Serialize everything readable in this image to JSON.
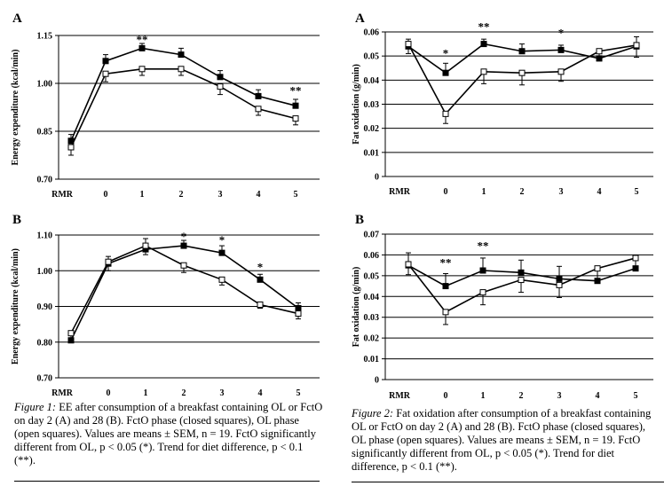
{
  "chart_data": [
    {
      "id": "fig1A",
      "type": "line",
      "panel_label": "A",
      "ylabel": "Energy expenditure (kcal/min)",
      "ylim": [
        0.7,
        1.15
      ],
      "yticks": [
        0.7,
        0.85,
        1.0,
        1.15
      ],
      "ytick_labels": [
        "0.70",
        "0.85",
        "1.00",
        "1.15"
      ],
      "categories": [
        "RMR",
        "0",
        "1",
        "2",
        "3",
        "4",
        "5"
      ],
      "grid": true,
      "series": [
        {
          "name": "FctO",
          "marker": "filled-square",
          "values": [
            0.82,
            1.07,
            1.11,
            1.09,
            1.02,
            0.96,
            0.93
          ],
          "errors": [
            0.02,
            0.02,
            0.015,
            0.02,
            0.02,
            0.02,
            0.02
          ]
        },
        {
          "name": "OL",
          "marker": "open-square",
          "values": [
            0.8,
            1.03,
            1.045,
            1.045,
            0.99,
            0.92,
            0.89
          ],
          "errors": [
            0.025,
            0.025,
            0.02,
            0.02,
            0.025,
            0.02,
            0.02
          ]
        }
      ],
      "annotations": [
        {
          "category": "1",
          "text": "**",
          "y": 1.125
        },
        {
          "category": "5",
          "text": "**",
          "y": 0.965
        }
      ]
    },
    {
      "id": "fig1B",
      "type": "line",
      "panel_label": "B",
      "ylabel": "Energy expenditure (kcal/min)",
      "ylim": [
        0.7,
        1.1
      ],
      "yticks": [
        0.7,
        0.8,
        0.9,
        1.0,
        1.1
      ],
      "ytick_labels": [
        "0.70",
        "0.80",
        "0.90",
        "1.00",
        "1.10"
      ],
      "categories": [
        "RMR",
        "0",
        "1",
        "2",
        "3",
        "4",
        "5"
      ],
      "grid": true,
      "series": [
        {
          "name": "FctO",
          "marker": "filled-square",
          "values": [
            0.805,
            1.02,
            1.06,
            1.07,
            1.05,
            0.975,
            0.895
          ],
          "errors": [
            0.015,
            0.02,
            0.03,
            0.015,
            0.02,
            0.015,
            0.015
          ]
        },
        {
          "name": "OL",
          "marker": "open-square",
          "values": [
            0.825,
            1.025,
            1.07,
            1.015,
            0.975,
            0.905,
            0.88
          ],
          "errors": [
            0.02,
            0.025,
            0.025,
            0.02,
            0.015,
            0.01,
            0.015
          ]
        }
      ],
      "annotations": [
        {
          "category": "2",
          "text": "*",
          "y": 1.085
        },
        {
          "category": "3",
          "text": "*",
          "y": 1.075
        },
        {
          "category": "4",
          "text": "*",
          "y": 1.0
        }
      ]
    },
    {
      "id": "fig2A",
      "type": "line",
      "panel_label": "A",
      "ylabel": "Fat oxidation (g/min)",
      "ylim": [
        0,
        0.06
      ],
      "yticks": [
        0,
        0.01,
        0.02,
        0.03,
        0.04,
        0.05,
        0.06
      ],
      "ytick_labels": [
        "0",
        "0.01",
        "0.02",
        "0.03",
        "0.04",
        "0.05",
        "0.06"
      ],
      "categories": [
        "RMR",
        "0",
        "1",
        "2",
        "3",
        "4",
        "5"
      ],
      "grid": true,
      "series": [
        {
          "name": "FctO",
          "marker": "filled-square",
          "values": [
            0.054,
            0.043,
            0.055,
            0.052,
            0.0525,
            0.049,
            0.054
          ],
          "errors": [
            0.003,
            0.004,
            0.002,
            0.003,
            0.002,
            0.004,
            0.004
          ]
        },
        {
          "name": "OL",
          "marker": "open-square",
          "values": [
            0.055,
            0.026,
            0.0435,
            0.043,
            0.0435,
            0.052,
            0.0545
          ],
          "errors": [
            0.004,
            0.004,
            0.005,
            0.005,
            0.004,
            0.004,
            0.005
          ]
        }
      ],
      "annotations": [
        {
          "category": "0",
          "text": "*",
          "y": 0.0495
        },
        {
          "category": "1",
          "text": "**",
          "y": 0.0605
        },
        {
          "category": "3",
          "text": "*",
          "y": 0.058
        }
      ]
    },
    {
      "id": "fig2B",
      "type": "line",
      "panel_label": "B",
      "ylabel": "Fat oxidation (g/min)",
      "ylim": [
        0,
        0.07
      ],
      "yticks": [
        0,
        0.01,
        0.02,
        0.03,
        0.04,
        0.05,
        0.06,
        0.07
      ],
      "ytick_labels": [
        "0",
        "0.01",
        "0.02",
        "0.03",
        "0.04",
        "0.05",
        "0.06",
        "0.07"
      ],
      "categories": [
        "RMR",
        "0",
        "1",
        "2",
        "3",
        "4",
        "5"
      ],
      "grid": true,
      "series": [
        {
          "name": "FctO",
          "marker": "filled-square",
          "values": [
            0.055,
            0.045,
            0.0525,
            0.0515,
            0.0485,
            0.0475,
            0.0535
          ],
          "errors": [
            0.006,
            0.006,
            0.006,
            0.006,
            0.006,
            0.006,
            0.006
          ]
        },
        {
          "name": "OL",
          "marker": "open-square",
          "values": [
            0.0555,
            0.0325,
            0.042,
            0.048,
            0.0455,
            0.0535,
            0.0585
          ],
          "errors": [
            0.005,
            0.006,
            0.006,
            0.006,
            0.006,
            0.006,
            0.006
          ]
        }
      ],
      "annotations": [
        {
          "category": "0",
          "text": "**",
          "y": 0.0545
        },
        {
          "category": "1",
          "text": "**",
          "y": 0.0625
        }
      ]
    }
  ],
  "captions": {
    "fig1": {
      "label": "Figure 1:",
      "text": " EE after consumption of a breakfast containing OL or FctO on day 2 (A) and 28 (B). FctO phase (closed squares), OL phase (open squares). Values are means ± SEM, n = 19. FctO significantly different from OL, p < 0.05 (*). Trend for diet difference, p < 0.1 (**)."
    },
    "fig2": {
      "label": "Figure 2:",
      "text": " Fat oxidation after consumption of a breakfast containing OL or FctO on day 2 (A) and 28 (B). FctO phase (closed squares), OL phase (open squares). Values are means ± SEM, n = 19. FctO significantly different from OL, p < 0.05 (*). Trend for diet difference, p < 0.1 (**)."
    }
  }
}
